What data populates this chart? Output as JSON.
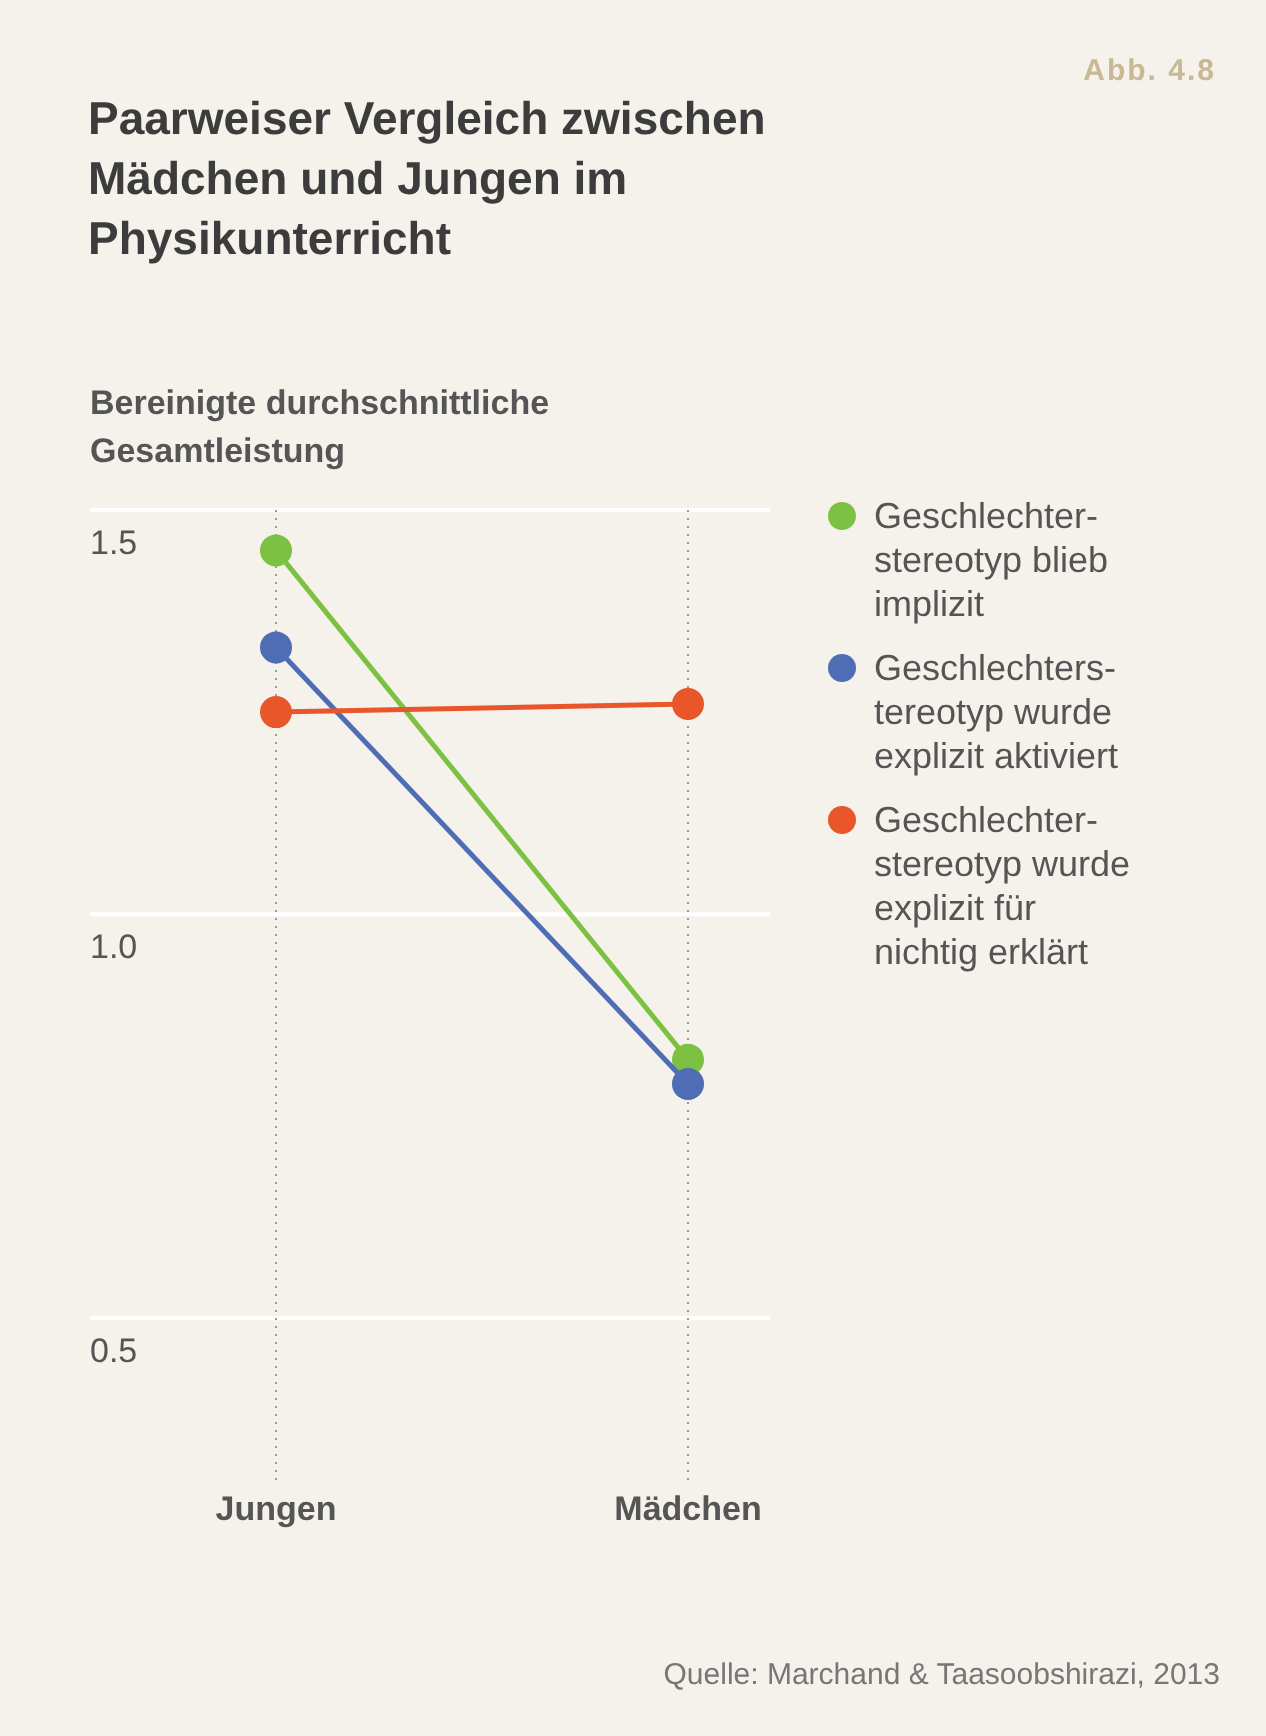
{
  "chart_data": {
    "type": "line",
    "title": "Paarweiser Vergleich zwischen Mädchen und Jungen im Physikunterricht",
    "ylabel": "Bereinigte durchschnittliche Gesamtleistung",
    "categories": [
      "Jungen",
      "Mädchen"
    ],
    "series": [
      {
        "name": "Geschlechter-stereotyp blieb implizit",
        "color": "#7dc142",
        "values": [
          1.45,
          0.82
        ]
      },
      {
        "name": "Geschlechters-tereotyp wurde explizit aktiviert",
        "color": "#4f6db5",
        "values": [
          1.33,
          0.79
        ]
      },
      {
        "name": "Geschlechter-stereotyp wurde explizit für nichtig erklärt",
        "color": "#e8562a",
        "values": [
          1.25,
          1.26
        ]
      }
    ],
    "ylim": [
      0.3,
      1.5
    ],
    "yticks": [
      0.5,
      {
        "value": 1,
        "label": "1.0"
      },
      1.5
    ],
    "grid": true,
    "legend": "right",
    "marker": "circle",
    "line_style": "solid",
    "annotations": [
      "Abb. 4.8",
      "Quelle: Marchand & Taasoobshirazi, 2013"
    ]
  }
}
